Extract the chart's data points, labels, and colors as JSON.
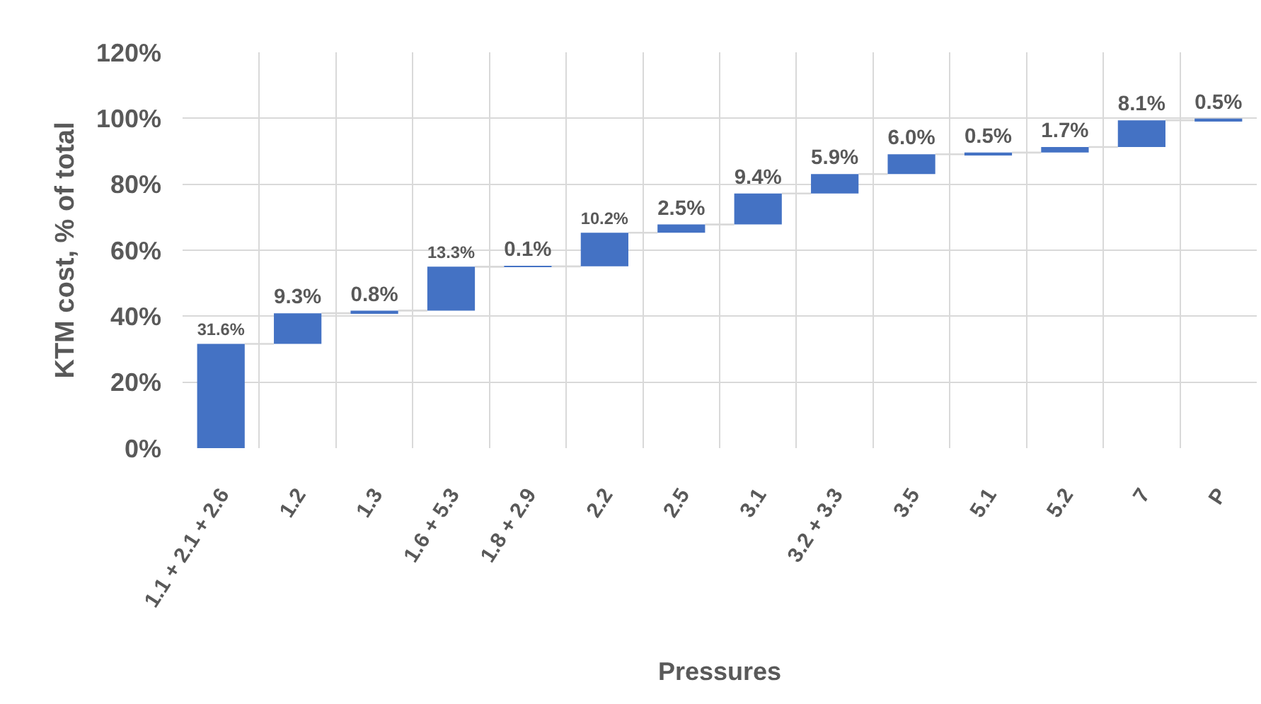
{
  "chart_data": {
    "type": "bar",
    "xlabel": "Pressures",
    "ylabel": "KTM cost, % of total",
    "categories": [
      "1.1 + 2.1 + 2.6",
      "1.2",
      "1.3",
      "1.6 + 5.3",
      "1.8 + 2.9",
      "2.2",
      "2.5",
      "3.1",
      "3.2 + 3.3",
      "3.5",
      "5.1",
      "5.2",
      "7",
      "P"
    ],
    "values": [
      31.6,
      9.3,
      0.8,
      13.3,
      0.1,
      10.2,
      2.5,
      9.4,
      5.9,
      6.0,
      0.5,
      1.7,
      8.1,
      0.5
    ],
    "base": [
      0,
      31.6,
      40.9,
      41.7,
      55.0,
      55.1,
      65.3,
      67.8,
      77.2,
      83.1,
      89.1,
      89.6,
      91.3,
      99.4
    ],
    "value_labels": [
      "31.6%",
      "9.3%",
      "0.8%",
      "13.3%",
      "0.1%",
      "10.2%",
      "2.5%",
      "9.4%",
      "5.9%",
      "6.0%",
      "0.5%",
      "1.7%",
      "8.1%",
      "0.5%"
    ],
    "color": "#4472c4",
    "ylim": [
      0,
      120
    ],
    "yticks": [
      {
        "value": 0,
        "label": "0%"
      },
      {
        "value": 20,
        "label": "20%"
      },
      {
        "value": 40,
        "label": "40%"
      },
      {
        "value": 60,
        "label": "60%"
      },
      {
        "value": 80,
        "label": "80%"
      },
      {
        "value": 100,
        "label": "100%"
      },
      {
        "value": 120,
        "label": "120%"
      }
    ],
    "grid": true
  }
}
